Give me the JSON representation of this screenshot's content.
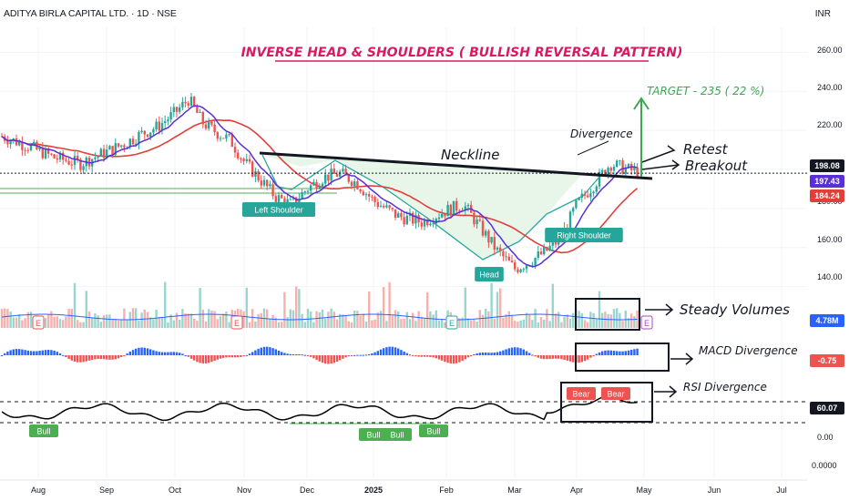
{
  "header": {
    "symbol_line": "ADITYA BIRLA CAPITAL LTD. · 1D · NSE",
    "currency": "INR"
  },
  "colors": {
    "up": "#26a69a",
    "down": "#ef5350",
    "ma_fast": "#5b2fd6",
    "ma_slow": "#e0403a",
    "pattern_fill": "#e8f5e9",
    "pattern_line": "#26a69a",
    "title": "#d81b60",
    "target": "#3aa84f",
    "vol_line": "#2962ff",
    "rsi": "#000000"
  },
  "annotations": {
    "title": "INVERSE HEAD & SHOULDERS ( BULLISH REVERSAL PATTERN)",
    "target": "TARGET - 235 ( 22 %)",
    "divergence": "Divergence",
    "neckline": "Neckline",
    "retest": "Retest",
    "breakout": "Breakout",
    "left_shoulder": "Left Shoulder",
    "head": "Head",
    "right_shoulder": "Right Shoulder",
    "steady_volumes": "Steady Volumes",
    "macd_divergence": "MACD Divergence",
    "rsi_divergence": "RSI Divergence",
    "bull": "Bull",
    "bear": "Bear",
    "earnings": "E"
  },
  "price_badges": [
    {
      "label": "198.08",
      "bg": "#131722",
      "fg": "#ffffff"
    },
    {
      "label": "197.43",
      "bg": "#5b2fd6",
      "fg": "#ffffff"
    },
    {
      "label": "184.24",
      "bg": "#e0403a",
      "fg": "#ffffff"
    }
  ],
  "indicator_badges": [
    {
      "label": "4.78M",
      "bg": "#2962ff",
      "fg": "#ffffff"
    },
    {
      "label": "-0.75",
      "bg": "#ef5350",
      "fg": "#ffffff"
    },
    {
      "label": "60.07",
      "bg": "#131722",
      "fg": "#ffffff"
    }
  ],
  "chart_data": {
    "type": "candlestick",
    "title": "ADITYA BIRLA CAPITAL LTD. · 1D · NSE",
    "x_ticks": [
      "Aug",
      "Sep",
      "Oct",
      "Nov",
      "Dec",
      "2025",
      "Feb",
      "Mar",
      "Apr",
      "May",
      "Jun",
      "Jul"
    ],
    "price_ticks": [
      "260.00",
      "240.00",
      "220.00",
      "180.00",
      "160.00",
      "140.00"
    ],
    "price_range": [
      130,
      270
    ],
    "rsi_ticks": [
      "0.00"
    ],
    "extra_ticks": [
      "0.0000"
    ],
    "last_price": 198.08,
    "ma_fast_last": 197.43,
    "ma_slow_last": 184.24,
    "volume_last": "4.78M",
    "macd_last": -0.75,
    "rsi_last": 60.07,
    "target_price": 235,
    "target_pct": 22,
    "price_path": [
      [
        "Aug",
        217
      ],
      [
        "Aug",
        212
      ],
      [
        "Aug",
        206
      ],
      [
        "Aug",
        203
      ],
      [
        "Sep",
        209
      ],
      [
        "Sep",
        213
      ],
      [
        "Sep",
        218
      ],
      [
        "Sep",
        222
      ],
      [
        "Oct",
        229
      ],
      [
        "Oct",
        236
      ],
      [
        "Oct",
        224
      ],
      [
        "Oct",
        219
      ],
      [
        "Oct",
        215
      ],
      [
        "Nov",
        204
      ],
      [
        "Nov",
        195
      ],
      [
        "Nov",
        186
      ],
      [
        "Nov",
        182
      ],
      [
        "Dec",
        190
      ],
      [
        "Dec",
        196
      ],
      [
        "Dec",
        198
      ],
      [
        "Dec",
        193
      ],
      [
        "2025",
        184
      ],
      [
        "2025",
        176
      ],
      [
        "2025",
        173
      ],
      [
        "Feb",
        179
      ],
      [
        "Feb",
        182
      ],
      [
        "Feb",
        170
      ],
      [
        "Feb",
        158
      ],
      [
        "Mar",
        149
      ],
      [
        "Mar",
        153
      ],
      [
        "Mar",
        158
      ],
      [
        "Mar",
        165
      ],
      [
        "Apr",
        182
      ],
      [
        "Apr",
        192
      ],
      [
        "Apr",
        203
      ],
      [
        "Apr",
        200
      ],
      [
        "May",
        198.08
      ]
    ]
  }
}
